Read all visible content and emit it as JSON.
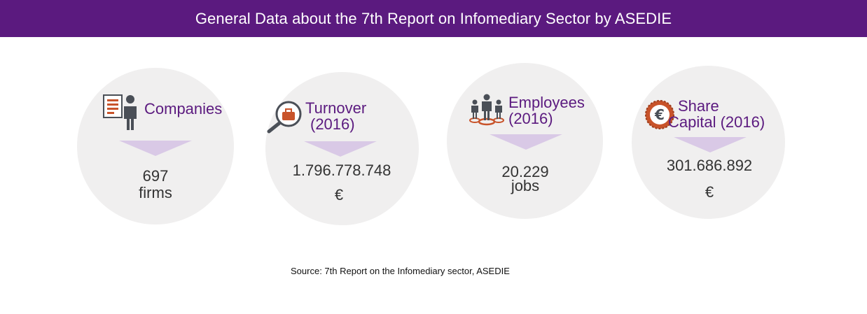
{
  "header": {
    "title": "General Data about the 7th Report on Infomediary Sector by ASEDIE"
  },
  "stats": [
    {
      "label_line1": "Companies",
      "label_line2": "",
      "value_line1": "697",
      "value_line2": "firms",
      "icon": "companies-icon"
    },
    {
      "label_line1": "Turnover",
      "label_line2": "(2016)",
      "value_line1": "1.796.778.748",
      "value_line2": "€",
      "icon": "turnover-magnifier-icon"
    },
    {
      "label_line1": "Employees",
      "label_line2": "(2016)",
      "value_line1": "20.229",
      "value_line2": "jobs",
      "icon": "employees-icon"
    },
    {
      "label_line1": "Share",
      "label_line2": "Capital (2016)",
      "value_line1": "301.686.892",
      "value_line2": "€",
      "icon": "euro-coin-icon"
    }
  ],
  "source": "Source: 7th Report on the Infomediary sector, ASEDIE",
  "colors": {
    "brand_purple": "#5b1a7f",
    "circle_gray": "#f0efef",
    "arrow_lilac": "#d9c9e6",
    "icon_orange": "#c8532a",
    "icon_gray": "#4a4f57"
  }
}
